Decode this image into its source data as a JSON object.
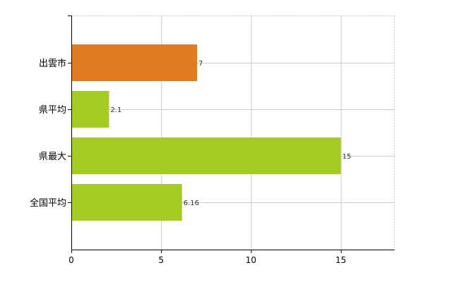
{
  "chart_data": {
    "type": "bar",
    "orientation": "horizontal",
    "categories": [
      "出雲市",
      "県平均",
      "県最大",
      "全国平均"
    ],
    "values": [
      7,
      2.1,
      15,
      6.16
    ],
    "value_labels": [
      "7",
      "2.1",
      "15",
      "6.16"
    ],
    "bar_colors": [
      "#E07B22",
      "#A4CC24",
      "#A4CC24",
      "#A4CC24"
    ],
    "xlim": [
      0,
      18
    ],
    "xticks": [
      0,
      5,
      10,
      15
    ],
    "xtick_labels": [
      "0",
      "5",
      "10",
      "15"
    ],
    "grid": true,
    "title": "",
    "xlabel": "",
    "ylabel": ""
  }
}
